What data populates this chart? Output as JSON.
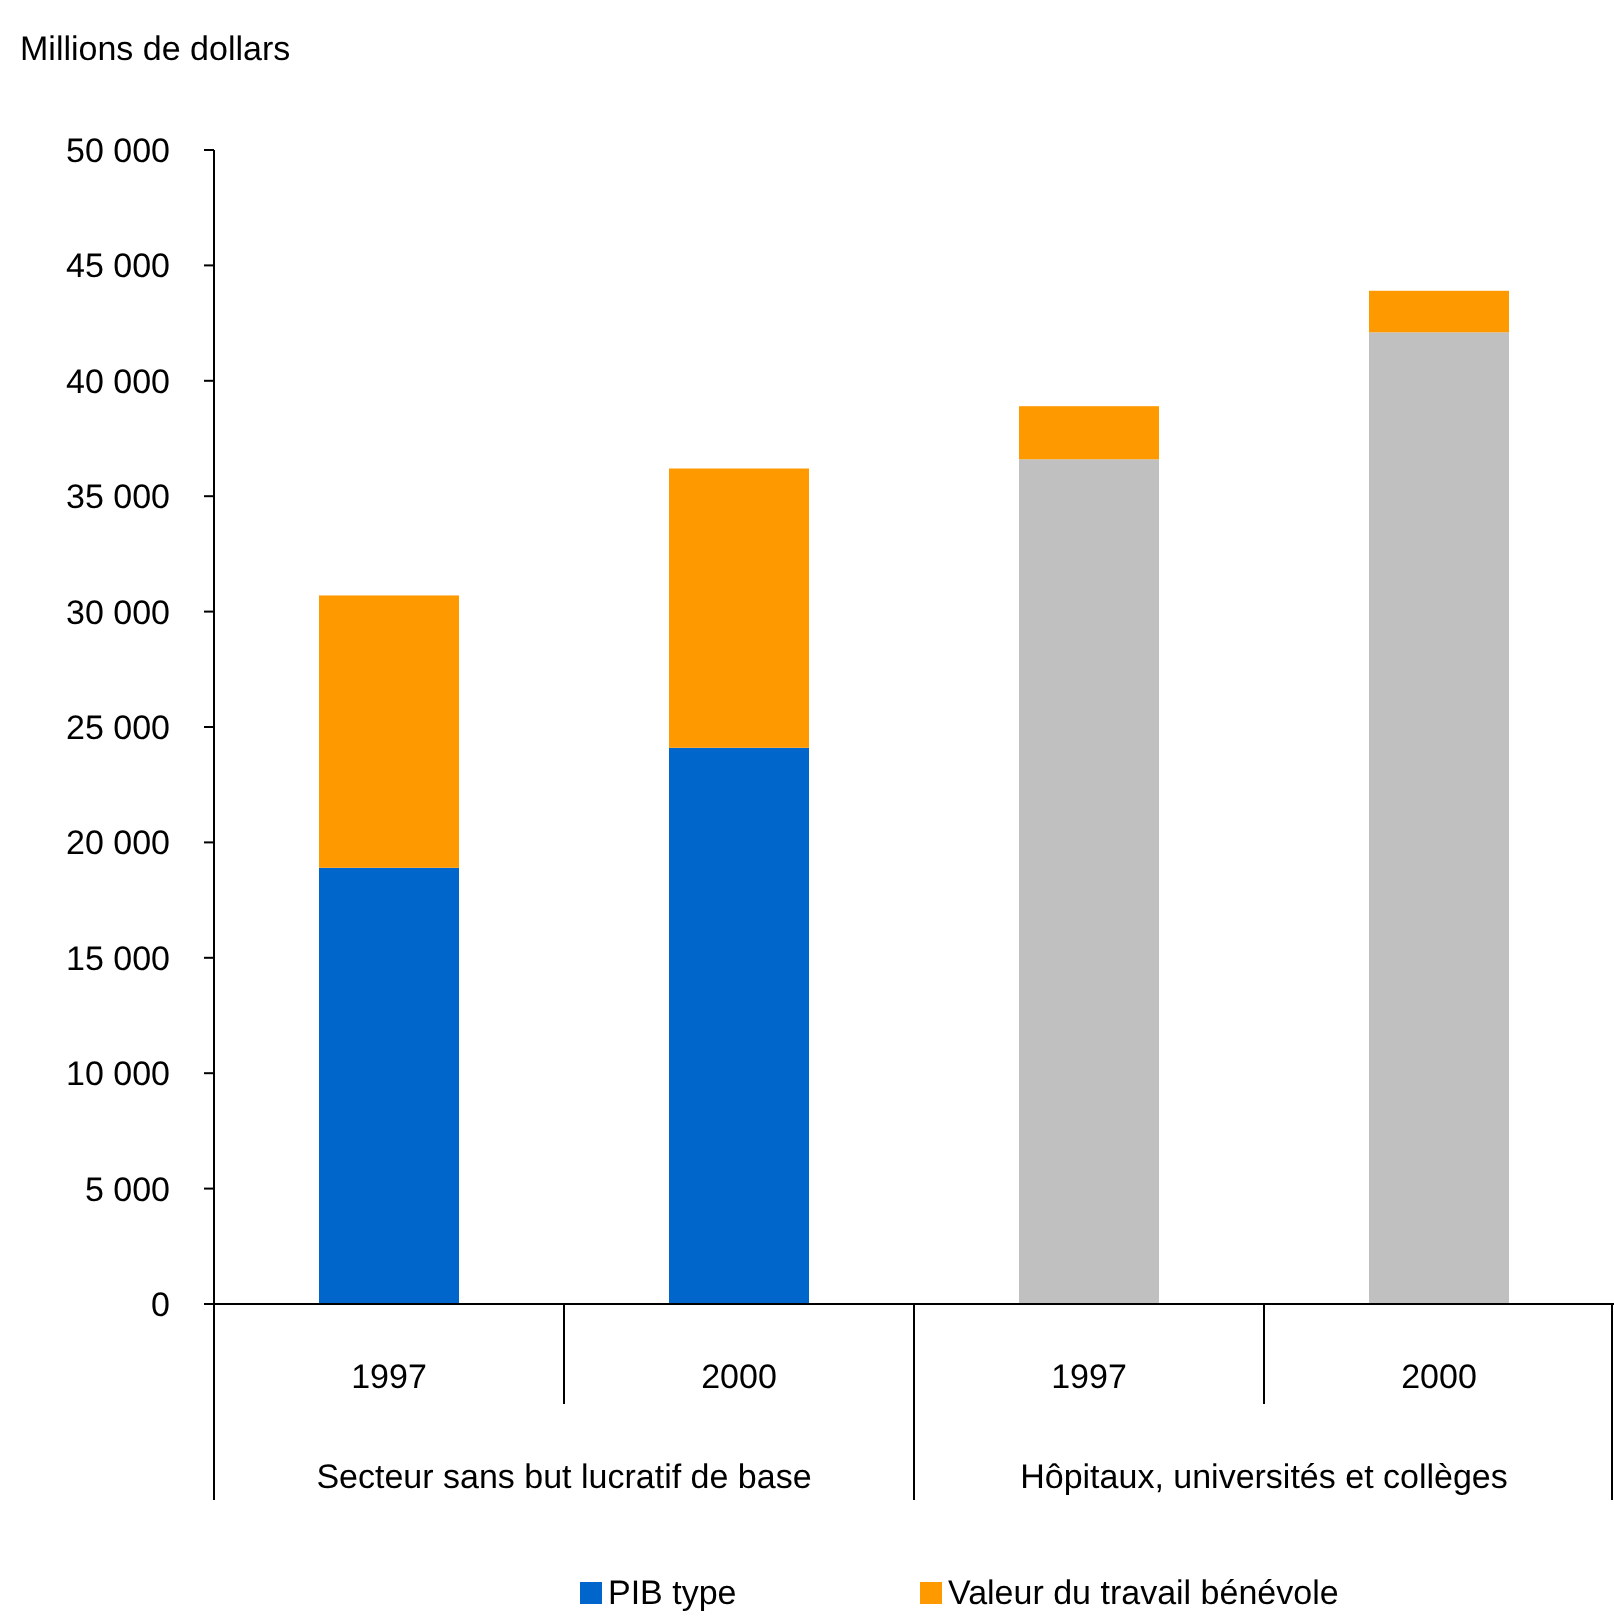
{
  "chart_data": {
    "type": "bar",
    "stacked": true,
    "ylabel": "Millions de dollars",
    "categories": [
      "1997",
      "2000",
      "1997",
      "2000"
    ],
    "series": [
      {
        "name": "PIB type",
        "color": "#0066cc",
        "colors": [
          "#0066cc",
          "#0066cc",
          "#c0c0c0",
          "#c0c0c0"
        ],
        "values": [
          18900,
          24100,
          36600,
          42100
        ]
      },
      {
        "name": "Valeur du travail bénévole",
        "color": "#ff9900",
        "values": [
          11800,
          12100,
          2300,
          1800
        ]
      }
    ],
    "ylim": [
      0,
      50000
    ],
    "yticks": [
      0,
      {
        "value": 5000,
        "label": "5 000"
      },
      {
        "value": 10000,
        "label": "10 000"
      },
      {
        "value": 15000,
        "label": "15 000"
      },
      {
        "value": 20000,
        "label": "20 000"
      },
      {
        "value": 25000,
        "label": "25 000"
      },
      {
        "value": 30000,
        "label": "30 000"
      },
      {
        "value": 35000,
        "label": "35 000"
      },
      {
        "value": 40000,
        "label": "40 000"
      },
      {
        "value": 45000,
        "label": "45 000"
      },
      {
        "value": 50000,
        "label": "50 000"
      }
    ],
    "annotations": [
      "Secteur sans but lucratif de base",
      "Hôpitaux, universités et collèges"
    ],
    "legend": "bottom"
  }
}
